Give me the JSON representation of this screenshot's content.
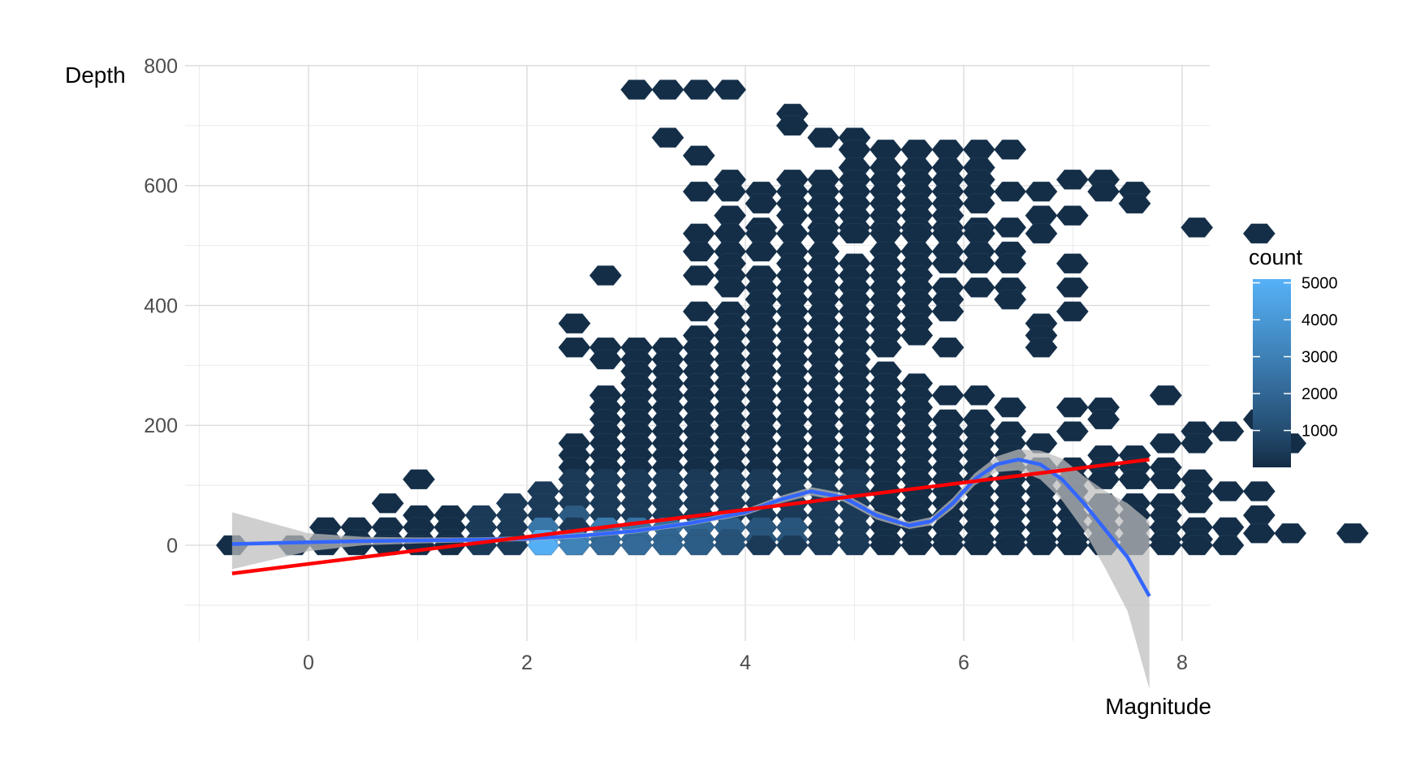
{
  "chart_data": {
    "type": "hexbin",
    "xlabel": "Magnitude",
    "ylabel": "Depth",
    "xlim": [
      -1.0,
      8.3
    ],
    "ylim": [
      -160,
      800
    ],
    "x_ticks": [
      0,
      2,
      4,
      6,
      8
    ],
    "y_ticks": [
      0,
      200,
      400,
      600,
      800
    ],
    "grid": true,
    "legend": {
      "title": "count",
      "position": "right",
      "breaks": [
        1000,
        2000,
        3000,
        4000,
        5000
      ],
      "range": [
        1,
        5100
      ],
      "color_low": "#132B43",
      "color_high": "#56B1F7"
    },
    "hex_grid": {
      "x_step": 0.285,
      "y_step": 40,
      "x_origin": -0.7,
      "y_origin": 0
    },
    "hex_rows": [
      {
        "y": 760,
        "cols": [
          [
            13,
            16
          ]
        ]
      },
      {
        "y": 720,
        "cols": [
          [
            18,
            18
          ]
        ]
      },
      {
        "y": 700,
        "cols": [
          [
            18,
            18
          ]
        ]
      },
      {
        "y": 680,
        "cols": [
          [
            14,
            14
          ],
          [
            19,
            20
          ]
        ]
      },
      {
        "y": 660,
        "cols": [
          [
            20,
            25
          ]
        ]
      },
      {
        "y": 650,
        "cols": [
          [
            15,
            15
          ]
        ]
      },
      {
        "y": 630,
        "cols": [
          [
            20,
            24
          ]
        ]
      },
      {
        "y": 610,
        "cols": [
          [
            16,
            16
          ],
          [
            18,
            24
          ],
          [
            27,
            28
          ]
        ]
      },
      {
        "y": 590,
        "cols": [
          [
            15,
            26
          ],
          [
            28,
            29
          ]
        ]
      },
      {
        "y": 570,
        "cols": [
          [
            17,
            24
          ],
          [
            29,
            29
          ]
        ]
      },
      {
        "y": 550,
        "cols": [
          [
            16,
            16
          ],
          [
            18,
            23
          ],
          [
            26,
            27
          ]
        ]
      },
      {
        "y": 530,
        "cols": [
          [
            17,
            17
          ],
          [
            19,
            25
          ],
          [
            31,
            31
          ]
        ]
      },
      {
        "y": 520,
        "cols": [
          [
            15,
            24
          ],
          [
            26,
            26
          ],
          [
            33,
            33
          ]
        ]
      },
      {
        "y": 490,
        "cols": [
          [
            15,
            19
          ],
          [
            21,
            25
          ]
        ]
      },
      {
        "y": 470,
        "cols": [
          [
            16,
            16
          ],
          [
            18,
            25
          ],
          [
            27,
            27
          ]
        ]
      },
      {
        "y": 450,
        "cols": [
          [
            12,
            12
          ],
          [
            15,
            22
          ]
        ]
      },
      {
        "y": 430,
        "cols": [
          [
            16,
            25
          ],
          [
            27,
            27
          ]
        ]
      },
      {
        "y": 410,
        "cols": [
          [
            17,
            23
          ],
          [
            25,
            25
          ]
        ]
      },
      {
        "y": 390,
        "cols": [
          [
            15,
            23
          ],
          [
            27,
            27
          ]
        ]
      },
      {
        "y": 370,
        "cols": [
          [
            11,
            11
          ],
          [
            16,
            22
          ],
          [
            26,
            26
          ]
        ]
      },
      {
        "y": 350,
        "cols": [
          [
            15,
            22
          ],
          [
            26,
            26
          ]
        ]
      },
      {
        "y": 330,
        "cols": [
          [
            11,
            21
          ],
          [
            23,
            23
          ],
          [
            26,
            26
          ]
        ]
      },
      {
        "y": 310,
        "cols": [
          [
            12,
            20
          ]
        ]
      },
      {
        "y": 290,
        "cols": [
          [
            13,
            21
          ]
        ]
      },
      {
        "y": 270,
        "cols": [
          [
            13,
            22
          ]
        ]
      },
      {
        "y": 250,
        "cols": [
          [
            12,
            24
          ],
          [
            30,
            30
          ]
        ]
      },
      {
        "y": 230,
        "cols": [
          [
            12,
            22
          ],
          [
            25,
            25
          ],
          [
            27,
            28
          ]
        ]
      },
      {
        "y": 210,
        "cols": [
          [
            12,
            24
          ],
          [
            28,
            28
          ],
          [
            33,
            33
          ]
        ]
      },
      {
        "y": 190,
        "cols": [
          [
            12,
            25
          ],
          [
            27,
            27
          ],
          [
            31,
            32
          ]
        ]
      },
      {
        "y": 170,
        "cols": [
          [
            11,
            26
          ],
          [
            30,
            31
          ],
          [
            34,
            34
          ]
        ]
      },
      {
        "y": 150,
        "cols": [
          [
            11,
            25
          ],
          [
            28,
            29
          ]
        ]
      },
      {
        "y": 130,
        "cols": [
          [
            11,
            30
          ]
        ]
      },
      {
        "y": 110,
        "cols": [
          [
            6,
            6
          ],
          [
            11,
            31
          ]
        ]
      },
      {
        "y": 90,
        "cols": [
          [
            10,
            27
          ],
          [
            31,
            33
          ]
        ]
      },
      {
        "y": 70,
        "cols": [
          [
            5,
            5
          ],
          [
            9,
            31
          ]
        ]
      },
      {
        "y": 50,
        "cols": [
          [
            6,
            30
          ],
          [
            33,
            33
          ]
        ]
      },
      {
        "y": 30,
        "cols": [
          [
            3,
            32
          ]
        ]
      },
      {
        "y": 20,
        "cols": [
          [
            33,
            34
          ],
          [
            36,
            36
          ]
        ]
      },
      {
        "y": 10,
        "cols": [
          [
            3,
            31
          ]
        ]
      },
      {
        "y": 0,
        "cols": [
          [
            0,
            0
          ],
          [
            2,
            32
          ]
        ]
      }
    ],
    "bright_cells": [
      {
        "x": 2.15,
        "y": 0,
        "count": 5000
      },
      {
        "x": 2.5,
        "y": 0,
        "count": 3100
      },
      {
        "x": 2.8,
        "y": 20,
        "count": 2800
      },
      {
        "x": 2.2,
        "y": 25,
        "count": 2600
      },
      {
        "x": 3.1,
        "y": 20,
        "count": 2500
      },
      {
        "x": 3.4,
        "y": 20,
        "count": 2300
      },
      {
        "x": 2.85,
        "y": 0,
        "count": 2100
      },
      {
        "x": 3.7,
        "y": 20,
        "count": 2000
      },
      {
        "x": 3.2,
        "y": 0,
        "count": 1900
      },
      {
        "x": 4.0,
        "y": 20,
        "count": 1700
      },
      {
        "x": 3.55,
        "y": 0,
        "count": 1600
      },
      {
        "x": 2.5,
        "y": 45,
        "count": 1500
      },
      {
        "x": 4.3,
        "y": 20,
        "count": 1300
      },
      {
        "x": 3.9,
        "y": 0,
        "count": 1200
      }
    ],
    "series": [
      {
        "kind": "smooth",
        "color": "#3366FF",
        "band_color": "#bdbdbd",
        "x": [
          -0.7,
          0,
          0.5,
          1,
          1.5,
          2,
          2.5,
          3,
          3.5,
          4,
          4.3,
          4.6,
          4.9,
          5.2,
          5.5,
          5.7,
          5.9,
          6.1,
          6.3,
          6.5,
          6.7,
          6.9,
          7.1,
          7.3,
          7.5,
          7.7
        ],
        "y": [
          2,
          5,
          7,
          8,
          9,
          11,
          16,
          24,
          37,
          55,
          75,
          90,
          80,
          50,
          33,
          40,
          70,
          110,
          135,
          143,
          135,
          110,
          70,
          25,
          -20,
          -85
        ],
        "lower": [
          -40,
          -10,
          0,
          3,
          5,
          7,
          12,
          20,
          33,
          50,
          69,
          83,
          73,
          43,
          27,
          33,
          61,
          100,
          122,
          125,
          110,
          75,
          25,
          -40,
          -110,
          -240
        ],
        "upper": [
          55,
          20,
          14,
          13,
          13,
          15,
          20,
          28,
          41,
          60,
          81,
          97,
          87,
          57,
          39,
          47,
          79,
          120,
          148,
          160,
          158,
          145,
          115,
          90,
          70,
          40
        ]
      },
      {
        "kind": "linear",
        "color": "#FF0000",
        "x": [
          -0.7,
          7.7
        ],
        "y": [
          -47,
          143
        ]
      }
    ]
  }
}
